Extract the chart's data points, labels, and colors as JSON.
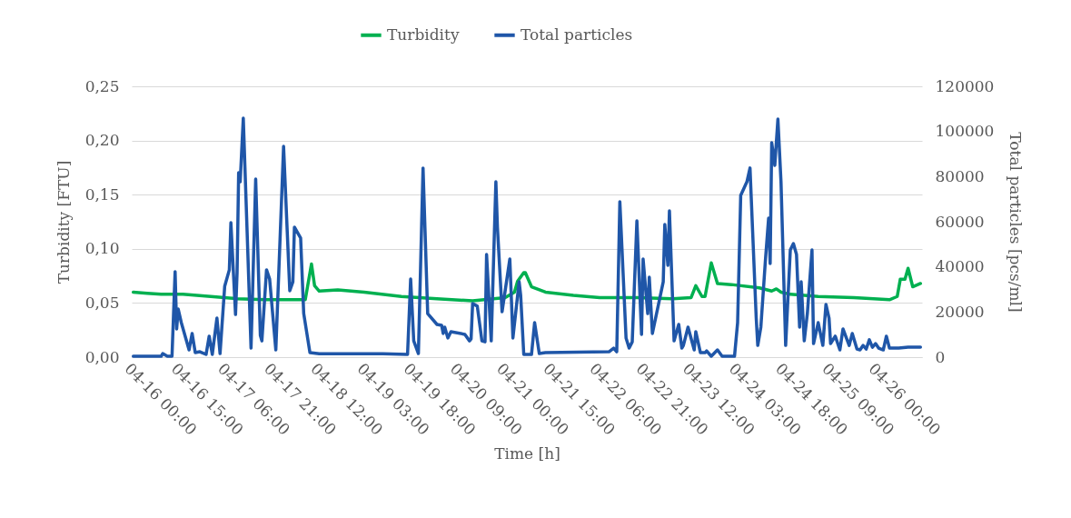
{
  "chart_data": {
    "type": "line",
    "xlabel": "Time [h]",
    "ylabel": "Turbidity [FTU]",
    "y2label": "Total particles [pcs/ml]",
    "legend": "top",
    "grid": "y",
    "marker": "none",
    "line_style": "solid",
    "xlim": [
      "--04-16T00:00",
      "--04-26T15:00"
    ],
    "xticks": [
      {
        "value": "--04-16T00:00",
        "label": "04-16 00:00"
      },
      {
        "value": "--04-16T15:00",
        "label": "04-16 15:00"
      },
      {
        "value": "--04-17T06:00",
        "label": "04-17 06:00"
      },
      {
        "value": "--04-17T21:00",
        "label": "04-17 21:00"
      },
      {
        "value": "--04-18T12:00",
        "label": "04-18 12:00"
      },
      {
        "value": "--04-19T03:00",
        "label": "04-19 03:00"
      },
      {
        "value": "--04-19T18:00",
        "label": "04-19 18:00"
      },
      {
        "value": "--04-20T09:00",
        "label": "04-20 09:00"
      },
      {
        "value": "--04-21T00:00",
        "label": "04-21 00:00"
      },
      {
        "value": "--04-21T15:00",
        "label": "04-21 15:00"
      },
      {
        "value": "--04-22T06:00",
        "label": "04-22 06:00"
      },
      {
        "value": "--04-22T21:00",
        "label": "04-22 21:00"
      },
      {
        "value": "--04-23T12:00",
        "label": "04-23 12:00"
      },
      {
        "value": "--04-24T03:00",
        "label": "04-24 03:00"
      },
      {
        "value": "--04-24T18:00",
        "label": "04-24 18:00"
      },
      {
        "value": "--04-25T09:00",
        "label": "04-25 09:00"
      },
      {
        "value": "--04-26T00:00",
        "label": "04-26 00:00"
      }
    ],
    "ylim": [
      0,
      0.25
    ],
    "yticks": [
      {
        "value": 0,
        "label": "0,00"
      },
      {
        "value": 0.05,
        "label": "0,05"
      },
      {
        "value": 0.1,
        "label": "0,10"
      },
      {
        "value": 0.15,
        "label": "0,15"
      },
      {
        "value": 0.2,
        "label": "0,20"
      },
      {
        "value": 0.25,
        "label": "0,25"
      }
    ],
    "y2lim": [
      0,
      120000
    ],
    "y2ticks": [
      0,
      20000,
      40000,
      60000,
      80000,
      100000,
      120000
    ],
    "series": [
      {
        "name": "Turbidity",
        "color": "#00b050",
        "x": [
          "--04-16T00:30",
          "--04-16T05:00",
          "--04-16T09:30",
          "--04-16T16:30",
          "--04-17T01:30",
          "--04-17T10:00",
          "--04-17T19:00",
          "--04-18T04:00",
          "--04-18T08:00",
          "--04-18T10:00",
          "--04-18T11:00",
          "--04-18T12:30",
          "--04-18T18:30",
          "--04-19T03:00",
          "--04-19T15:00",
          "--04-20T02:30",
          "--04-20T14:00",
          "--04-21T00:30",
          "--04-21T03:30",
          "--04-21T04:30",
          "--04-21T06:30",
          "--04-21T07:00",
          "--04-21T09:00",
          "--04-21T13:30",
          "--04-21T22:30",
          "--04-22T07:00",
          "--04-22T19:00",
          "--04-23T06:30",
          "--04-23T12:30",
          "--04-23T14:00",
          "--04-23T16:00",
          "--04-23T17:00",
          "--04-23T19:00",
          "--04-23T21:00",
          "--04-24T01:30",
          "--04-24T10:30",
          "--04-24T14:30",
          "--04-24T16:00",
          "--04-24T17:30",
          "--04-24T20:30",
          "--04-25T05:30",
          "--04-25T17:00",
          "--04-26T04:30",
          "--04-26T07:00",
          "--04-26T08:00",
          "--04-26T09:30",
          "--04-26T10:30",
          "--04-26T12:00",
          "--04-26T14:30"
        ],
        "values": [
          0.06,
          0.059,
          0.058,
          0.058,
          0.056,
          0.054,
          0.053,
          0.053,
          0.053,
          0.086,
          0.066,
          0.061,
          0.062,
          0.06,
          0.056,
          0.054,
          0.052,
          0.055,
          0.06,
          0.07,
          0.078,
          0.078,
          0.065,
          0.06,
          0.057,
          0.055,
          0.055,
          0.054,
          0.055,
          0.066,
          0.056,
          0.056,
          0.087,
          0.068,
          0.067,
          0.064,
          0.061,
          0.063,
          0.06,
          0.058,
          0.056,
          0.055,
          0.053,
          0.056,
          0.072,
          0.072,
          0.082,
          0.065,
          0.068
        ]
      },
      {
        "name": "Total particles",
        "color": "#1f56a8",
        "axis": "y2",
        "x": [
          "--04-16T00:30",
          "--04-16T09:30",
          "--04-16T10:00",
          "--04-16T11:30",
          "--04-16T13:00",
          "--04-16T14:00",
          "--04-16T14:30",
          "--04-16T15:00",
          "--04-16T16:00",
          "--04-16T18:30",
          "--04-16T19:30",
          "--04-16T20:30",
          "--04-16T22:00",
          "--04-17T00:00",
          "--04-17T01:00",
          "--04-17T02:00",
          "--04-17T03:30",
          "--04-17T04:30",
          "--04-17T06:00",
          "--04-17T07:30",
          "--04-17T08:00",
          "--04-17T09:30",
          "--04-17T10:00",
          "--04-17T10:30",
          "--04-17T11:00",
          "--04-17T12:00",
          "--04-17T14:30",
          "--04-17T16:00",
          "--04-17T17:30",
          "--04-17T18:00",
          "--04-17T19:30",
          "--04-17T20:30",
          "--04-17T22:30",
          "--04-18T01:00",
          "--04-18T03:00",
          "--04-18T04:00",
          "--04-18T04:30",
          "--04-18T06:30",
          "--04-18T07:30",
          "--04-18T09:30",
          "--04-18T12:30",
          "--04-19T09:00",
          "--04-19T17:00",
          "--04-19T18:00",
          "--04-19T19:00",
          "--04-19T20:30",
          "--04-19T22:00",
          "--04-19T23:30",
          "--04-20T02:30",
          "--04-20T04:00",
          "--04-20T04:30",
          "--04-20T05:00",
          "--04-20T06:00",
          "--04-20T07:00",
          "--04-20T11:30",
          "--04-20T13:00",
          "--04-20T13:30",
          "--04-20T14:00",
          "--04-20T15:30",
          "--04-20T17:00",
          "--04-20T18:00",
          "--04-20T18:30",
          "--04-20T20:00",
          "--04-20T21:30",
          "--04-20T22:00",
          "--04-20T23:30",
          "--04-21T02:00",
          "--04-21T03:00",
          "--04-21T05:00",
          "--04-21T05:30",
          "--04-21T06:30",
          "--04-21T09:00",
          "--04-21T10:00",
          "--04-21T11:30",
          "--04-21T13:30",
          "--04-22T10:00",
          "--04-22T11:30",
          "--04-22T12:30",
          "--04-22T13:30",
          "--04-22T15:30",
          "--04-22T16:30",
          "--04-22T17:30",
          "--04-22T19:00",
          "--04-22T20:30",
          "--04-22T21:00",
          "--04-22T22:30",
          "--04-22T23:00",
          "--04-23T00:00",
          "--04-23T03:30",
          "--04-23T04:00",
          "--04-23T05:00",
          "--04-23T05:30",
          "--04-23T07:00",
          "--04-23T08:30",
          "--04-23T09:30",
          "--04-23T10:00",
          "--04-23T11:30",
          "--04-23T13:30",
          "--04-23T14:00",
          "--04-23T15:30",
          "--04-23T17:00",
          "--04-23T17:30",
          "--04-23T19:00",
          "--04-23T21:00",
          "--04-23T22:30",
          "--04-24T02:30",
          "--04-24T03:30",
          "--04-24T04:30",
          "--04-24T06:30",
          "--04-24T07:30",
          "--04-24T09:30",
          "--04-24T10:00",
          "--04-24T11:00",
          "--04-24T12:30",
          "--04-24T13:30",
          "--04-24T14:00",
          "--04-24T14:30",
          "--04-24T15:30",
          "--04-24T16:30",
          "--04-24T17:30",
          "--04-24T19:00",
          "--04-24T20:30",
          "--04-24T21:30",
          "--04-24T22:30",
          "--04-24T23:30",
          "--04-25T00:00",
          "--04-25T01:00",
          "--04-25T02:00",
          "--04-25T03:30",
          "--04-25T04:00",
          "--04-25T05:30",
          "--04-25T07:00",
          "--04-25T08:00",
          "--04-25T09:00",
          "--04-25T09:30",
          "--04-25T11:00",
          "--04-25T12:30",
          "--04-25T13:30",
          "--04-25T15:30",
          "--04-25T16:30",
          "--04-25T18:00",
          "--04-25T19:00",
          "--04-25T20:00",
          "--04-25T21:00",
          "--04-25T22:00",
          "--04-25T23:00",
          "--04-26T00:00",
          "--04-26T01:00",
          "--04-26T02:30",
          "--04-26T03:30",
          "--04-26T04:30",
          "--04-26T07:30",
          "--04-26T10:30",
          "--04-26T14:30"
        ],
        "values": [
          400,
          400,
          1600,
          400,
          400,
          37900,
          12500,
          21300,
          15300,
          3200,
          10500,
          2000,
          2400,
          1200,
          9300,
          1200,
          17300,
          1600,
          31400,
          38700,
          59600,
          18900,
          37500,
          81700,
          77700,
          105900,
          4000,
          78900,
          9700,
          7200,
          38700,
          34600,
          3200,
          93400,
          29400,
          33400,
          57600,
          52800,
          19300,
          2000,
          1500,
          1500,
          1200,
          34600,
          7200,
          1600,
          83800,
          19300,
          14500,
          14100,
          10500,
          13300,
          8500,
          11300,
          10100,
          7200,
          8100,
          23800,
          22600,
          7200,
          6800,
          45500,
          7200,
          77700,
          57600,
          20100,
          43500,
          8500,
          33400,
          27400,
          1200,
          1200,
          15300,
          1600,
          2000,
          2400,
          4000,
          2400,
          68900,
          8500,
          4000,
          6800,
          60400,
          10100,
          43500,
          19300,
          35400,
          10500,
          33400,
          58800,
          40700,
          64800,
          7200,
          14500,
          4000,
          5200,
          13300,
          3200,
          11300,
          2000,
          2000,
          2800,
          400,
          3200,
          400,
          400,
          15300,
          71700,
          77700,
          83800,
          17300,
          5200,
          13300,
          43500,
          61600,
          41500,
          95000,
          85000,
          105500,
          77700,
          5200,
          47500,
          50300,
          45500,
          13300,
          33400,
          7200,
          19300,
          47500,
          6000,
          15300,
          5200,
          23400,
          17300,
          6000,
          9300,
          3200,
          12500,
          5200,
          10500,
          3600,
          3200,
          5200,
          3600,
          7700,
          4400,
          6000,
          4000,
          3200,
          9300,
          4000,
          4000,
          4400,
          4400
        ]
      }
    ]
  }
}
